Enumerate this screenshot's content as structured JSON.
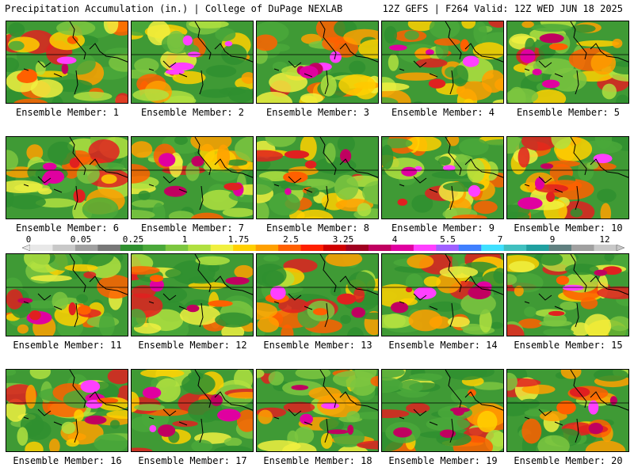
{
  "header": {
    "title": "Precipitation Accumulation (in.) | College of DuPage NEXLAB",
    "run_info": "12Z GEFS | F264 Valid: 12Z WED JUN 18 2025"
  },
  "panels": [
    {
      "label": "Ensemble Member: 1"
    },
    {
      "label": "Ensemble Member: 2"
    },
    {
      "label": "Ensemble Member: 3"
    },
    {
      "label": "Ensemble Member: 4"
    },
    {
      "label": "Ensemble Member: 5"
    },
    {
      "label": "Ensemble Member: 6"
    },
    {
      "label": "Ensemble Member: 7"
    },
    {
      "label": "Ensemble Member: 8"
    },
    {
      "label": "Ensemble Member: 9"
    },
    {
      "label": "Ensemble Member: 10"
    },
    {
      "label": "Ensemble Member: 11"
    },
    {
      "label": "Ensemble Member: 12"
    },
    {
      "label": "Ensemble Member: 13"
    },
    {
      "label": "Ensemble Member: 14"
    },
    {
      "label": "Ensemble Member: 15"
    },
    {
      "label": "Ensemble Member: 16"
    },
    {
      "label": "Ensemble Member: 17"
    },
    {
      "label": "Ensemble Member: 18"
    },
    {
      "label": "Ensemble Member: 19"
    },
    {
      "label": "Ensemble Member: 20"
    }
  ],
  "colorbar": {
    "ticks": [
      "0",
      "0.05",
      "0.25",
      "1",
      "1.75",
      "2.5",
      "3.25",
      "4",
      "5.5",
      "7",
      "9",
      "12"
    ],
    "colors": [
      "#e8e8e8",
      "#c8c8c8",
      "#a0a0a0",
      "#787878",
      "#2f8f2f",
      "#4aa83a",
      "#7cc63f",
      "#b0e040",
      "#f0f040",
      "#ffd000",
      "#ffa000",
      "#ff6000",
      "#ff2000",
      "#d00000",
      "#a00020",
      "#c00060",
      "#e000a0",
      "#ff40ff",
      "#a060ff",
      "#4080ff",
      "#40e0ff",
      "#40c0c0",
      "#20a0a0",
      "#608080",
      "#a0a0a0",
      "#c8c8c8"
    ]
  }
}
